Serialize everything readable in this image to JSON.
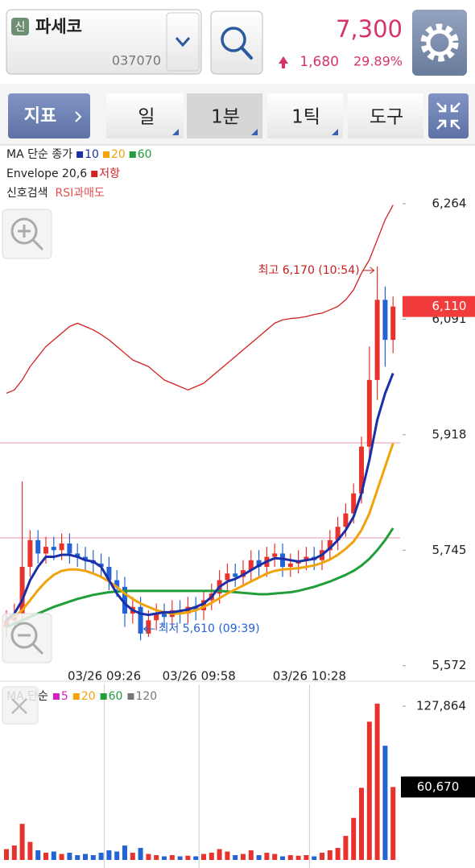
{
  "header": {
    "badge": "신",
    "stock_name": "파세코",
    "stock_code": "037070",
    "price": "7,300",
    "change": "1,680",
    "change_rate": "29.89%"
  },
  "toolbar": {
    "indicator": "지표",
    "tabs": [
      "일",
      "1분",
      "1틱",
      "도구"
    ]
  },
  "chart_data": [
    {
      "type": "candlestick",
      "ma_label": "MA 단순 종가",
      "envelope_label": "Envelope 20,6",
      "signal_label": "신호검색",
      "signal_name": "RSI과매도",
      "up_color": "#e8322e",
      "down_color": "#2463d6",
      "ylim": [
        5568,
        6346
      ],
      "yticks": [
        {
          "value": 6264,
          "label": "6,264"
        },
        {
          "value": 6091,
          "label": "6,091"
        },
        {
          "value": 5918,
          "label": "5,918"
        },
        {
          "value": 5745,
          "label": "5,745"
        },
        {
          "value": 5572,
          "label": "5,572"
        }
      ],
      "current": {
        "value": 6110,
        "label": "6,110"
      },
      "high_note": "최고 6,170 (10:54)",
      "low_note": "최저 5,610 (09:39)",
      "categories": [
        null,
        null,
        null,
        null,
        null,
        null,
        null,
        null,
        null,
        null,
        null,
        null,
        "03/26 09:26",
        null,
        null,
        null,
        null,
        null,
        null,
        null,
        null,
        null,
        null,
        null,
        "03/26 09:58",
        null,
        null,
        null,
        null,
        null,
        null,
        null,
        null,
        null,
        null,
        null,
        null,
        null,
        "03/26 10:28",
        null,
        null,
        null,
        null,
        null,
        null,
        null,
        null,
        null,
        null,
        null
      ],
      "open": [
        5630,
        5640,
        5650,
        5720,
        5760,
        5740,
        5750,
        5745,
        5755,
        5740,
        5735,
        5730,
        5725,
        5720,
        5700,
        5690,
        5650,
        5660,
        5620,
        5640,
        5650,
        5645,
        5655,
        5650,
        5660,
        5655,
        5670,
        5680,
        5700,
        5710,
        5705,
        5715,
        5730,
        5720,
        5735,
        5740,
        5720,
        5725,
        5730,
        5735,
        5730,
        5745,
        5760,
        5780,
        5800,
        5830,
        5900,
        6000,
        6120,
        6060
      ],
      "high": [
        5655,
        5665,
        5848,
        5775,
        5775,
        5765,
        5765,
        5770,
        5770,
        5755,
        5750,
        5745,
        5740,
        5735,
        5715,
        5705,
        5675,
        5675,
        5655,
        5665,
        5665,
        5670,
        5670,
        5675,
        5675,
        5685,
        5695,
        5715,
        5725,
        5725,
        5730,
        5745,
        5745,
        5750,
        5755,
        5755,
        5740,
        5745,
        5750,
        5750,
        5760,
        5775,
        5795,
        5815,
        5845,
        5915,
        6050,
        6170,
        6140,
        6125
      ],
      "low": [
        5615,
        5625,
        5640,
        5705,
        5725,
        5725,
        5730,
        5730,
        5725,
        5720,
        5715,
        5710,
        5705,
        5685,
        5675,
        5630,
        5635,
        5610,
        5615,
        5625,
        5630,
        5630,
        5635,
        5635,
        5640,
        5640,
        5655,
        5665,
        5685,
        5690,
        5690,
        5700,
        5705,
        5705,
        5720,
        5705,
        5705,
        5710,
        5715,
        5715,
        5715,
        5730,
        5745,
        5765,
        5785,
        5815,
        5880,
        5970,
        6020,
        6040
      ],
      "close": [
        5640,
        5650,
        5720,
        5760,
        5740,
        5750,
        5745,
        5755,
        5740,
        5735,
        5730,
        5725,
        5720,
        5700,
        5690,
        5650,
        5660,
        5620,
        5640,
        5650,
        5645,
        5655,
        5650,
        5660,
        5655,
        5670,
        5680,
        5700,
        5710,
        5705,
        5715,
        5730,
        5720,
        5735,
        5740,
        5720,
        5725,
        5730,
        5735,
        5730,
        5745,
        5760,
        5780,
        5800,
        5830,
        5900,
        6000,
        6120,
        6060,
        6110
      ],
      "series": [
        {
          "name": "10",
          "color": "#1a2fa8",
          "values": [
            5640,
            5650,
            5670,
            5700,
            5720,
            5735,
            5735,
            5738,
            5738,
            5735,
            5730,
            5728,
            5720,
            5700,
            5680,
            5665,
            5655,
            5650,
            5648,
            5650,
            5652,
            5652,
            5654,
            5656,
            5660,
            5665,
            5675,
            5690,
            5698,
            5702,
            5708,
            5715,
            5722,
            5728,
            5733,
            5732,
            5730,
            5728,
            5730,
            5732,
            5738,
            5748,
            5760,
            5775,
            5795,
            5830,
            5880,
            5940,
            5980,
            6010
          ]
        },
        {
          "name": "20",
          "color": "#f0a30a",
          "values": [
            5640,
            5645,
            5655,
            5670,
            5685,
            5698,
            5708,
            5714,
            5716,
            5716,
            5714,
            5710,
            5705,
            5698,
            5690,
            5680,
            5672,
            5665,
            5660,
            5655,
            5652,
            5650,
            5650,
            5652,
            5655,
            5660,
            5666,
            5673,
            5680,
            5686,
            5692,
            5698,
            5704,
            5710,
            5714,
            5716,
            5717,
            5718,
            5720,
            5722,
            5726,
            5731,
            5738,
            5747,
            5758,
            5775,
            5800,
            5835,
            5870,
            5905
          ]
        },
        {
          "name": "60",
          "color": "#1f9e3a",
          "values": [
            5630,
            5635,
            5640,
            5645,
            5650,
            5655,
            5660,
            5664,
            5668,
            5672,
            5675,
            5678,
            5680,
            5682,
            5683,
            5684,
            5684,
            5684,
            5684,
            5684,
            5684,
            5684,
            5684,
            5684,
            5684,
            5684,
            5684,
            5684,
            5683,
            5682,
            5681,
            5680,
            5679,
            5679,
            5680,
            5681,
            5682,
            5684,
            5687,
            5690,
            5694,
            5698,
            5703,
            5708,
            5714,
            5722,
            5732,
            5745,
            5760,
            5778
          ]
        },
        {
          "name": "저항",
          "color": "#d42020",
          "values": [
            5980,
            5985,
            6000,
            6020,
            6035,
            6050,
            6060,
            6070,
            6080,
            6085,
            6080,
            6075,
            6068,
            6060,
            6050,
            6040,
            6030,
            6025,
            6020,
            6010,
            6000,
            5995,
            5990,
            5985,
            5990,
            5995,
            6005,
            6015,
            6025,
            6035,
            6045,
            6055,
            6065,
            6075,
            6085,
            6090,
            6092,
            6093,
            6095,
            6098,
            6100,
            6105,
            6110,
            6120,
            6135,
            6160,
            6180,
            6210,
            6240,
            6262
          ]
        }
      ]
    },
    {
      "type": "bar",
      "ma_label": "MA 단순",
      "ma_legend": [
        {
          "name": "5",
          "color": "#d020c0"
        },
        {
          "name": "20",
          "color": "#f0a30a"
        },
        {
          "name": "60",
          "color": "#1f9e3a"
        },
        {
          "name": "120",
          "color": "#777777"
        }
      ],
      "ylim": [
        0,
        146000
      ],
      "yticks": [
        {
          "value": 127864,
          "label": "127,864"
        }
      ],
      "current": {
        "value": 60670,
        "label": "60,670"
      },
      "values": [
        9000,
        12000,
        30000,
        15000,
        8000,
        6000,
        7000,
        5000,
        6000,
        4000,
        5000,
        4000,
        6000,
        8000,
        7000,
        12000,
        6000,
        10000,
        5000,
        4000,
        3000,
        4000,
        3000,
        3500,
        3000,
        5000,
        6000,
        9000,
        7000,
        4000,
        5000,
        8000,
        4000,
        6000,
        5000,
        3000,
        4000,
        3500,
        4000,
        3000,
        6000,
        8000,
        10000,
        20000,
        35000,
        60000,
        115000,
        130000,
        95000,
        60670
      ]
    }
  ]
}
